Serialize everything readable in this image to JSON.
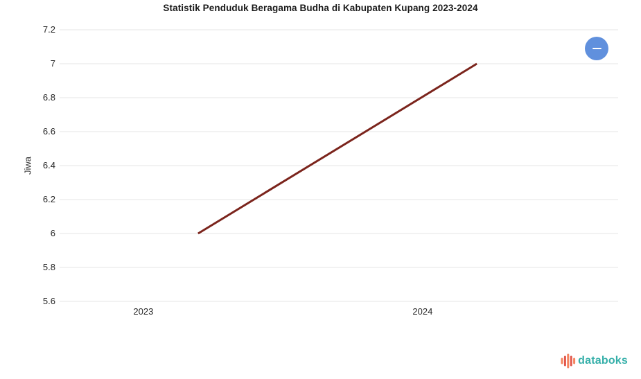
{
  "chart_data": {
    "type": "line",
    "title": "Statistik Penduduk Beragama Budha di Kabupaten Kupang 2023-2024",
    "ylabel": "Jiwa",
    "xlabel": "",
    "categories": [
      "2023",
      "2024"
    ],
    "yticks": [
      "7.2",
      "7",
      "6.8",
      "6.6",
      "6.4",
      "6.2",
      "6",
      "5.8",
      "5.6"
    ],
    "ylim": [
      5.6,
      7.2
    ],
    "series": [
      {
        "name": "Jiwa",
        "x": [
          2023,
          2024
        ],
        "values": [
          6,
          7
        ],
        "color": "#7B241C"
      }
    ],
    "grid": "horizontal-only",
    "gridline_color": "#E6E6E6",
    "legend": "none"
  },
  "controls": {
    "toggle_icon": "minus-icon",
    "toggle_color": "#6090DD"
  },
  "footer": {
    "brand": "databoks",
    "brand_color": "#35AFA9",
    "icon_bar_colors": [
      "#F4845F",
      "#E2574C",
      "#F4845F",
      "#E2574C",
      "#F4845F"
    ]
  }
}
